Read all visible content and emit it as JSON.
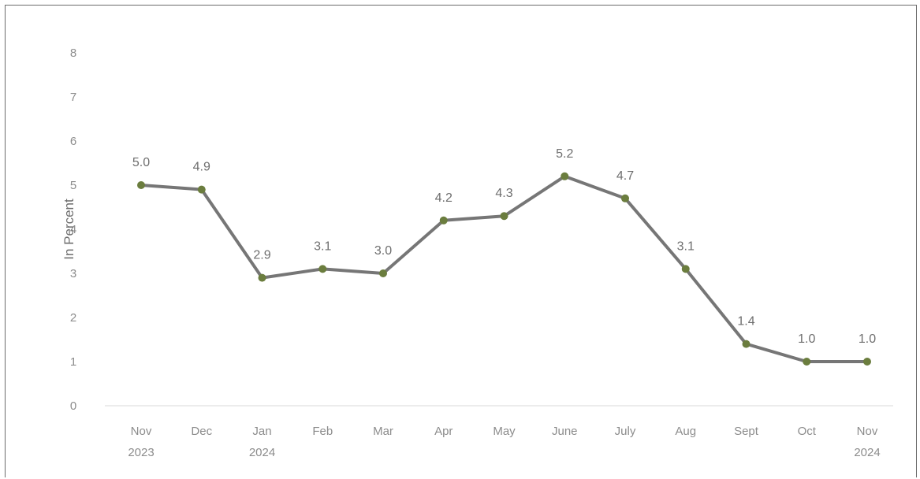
{
  "chart_data": {
    "type": "line",
    "title": "",
    "xlabel": "",
    "ylabel": "In Percent",
    "ylim": [
      0,
      8
    ],
    "yticks": [
      "0",
      "1",
      "2",
      "3",
      "4",
      "5",
      "6",
      "7",
      "8"
    ],
    "grid": false,
    "categories": [
      [
        "Nov",
        "2023"
      ],
      [
        "Dec",
        ""
      ],
      [
        "Jan",
        "2024"
      ],
      [
        "Feb",
        ""
      ],
      [
        "Mar",
        ""
      ],
      [
        "Apr",
        ""
      ],
      [
        "May",
        ""
      ],
      [
        "June",
        ""
      ],
      [
        "July",
        ""
      ],
      [
        "Aug",
        ""
      ],
      [
        "Sept",
        ""
      ],
      [
        "Oct",
        ""
      ],
      [
        "Nov",
        "2024"
      ]
    ],
    "series": [
      {
        "values": [
          5.0,
          4.9,
          2.9,
          3.1,
          3.0,
          4.2,
          4.3,
          5.2,
          4.7,
          3.1,
          1.4,
          1.0,
          1.0
        ],
        "labels": [
          "5.0",
          "4.9",
          "2.9",
          "3.1",
          "3.0",
          "4.2",
          "4.3",
          "5.2",
          "4.7",
          "3.1",
          "1.4",
          "1.0",
          "1.0"
        ],
        "line_color": "#767676",
        "marker_color": "#6b7d3e"
      }
    ]
  }
}
